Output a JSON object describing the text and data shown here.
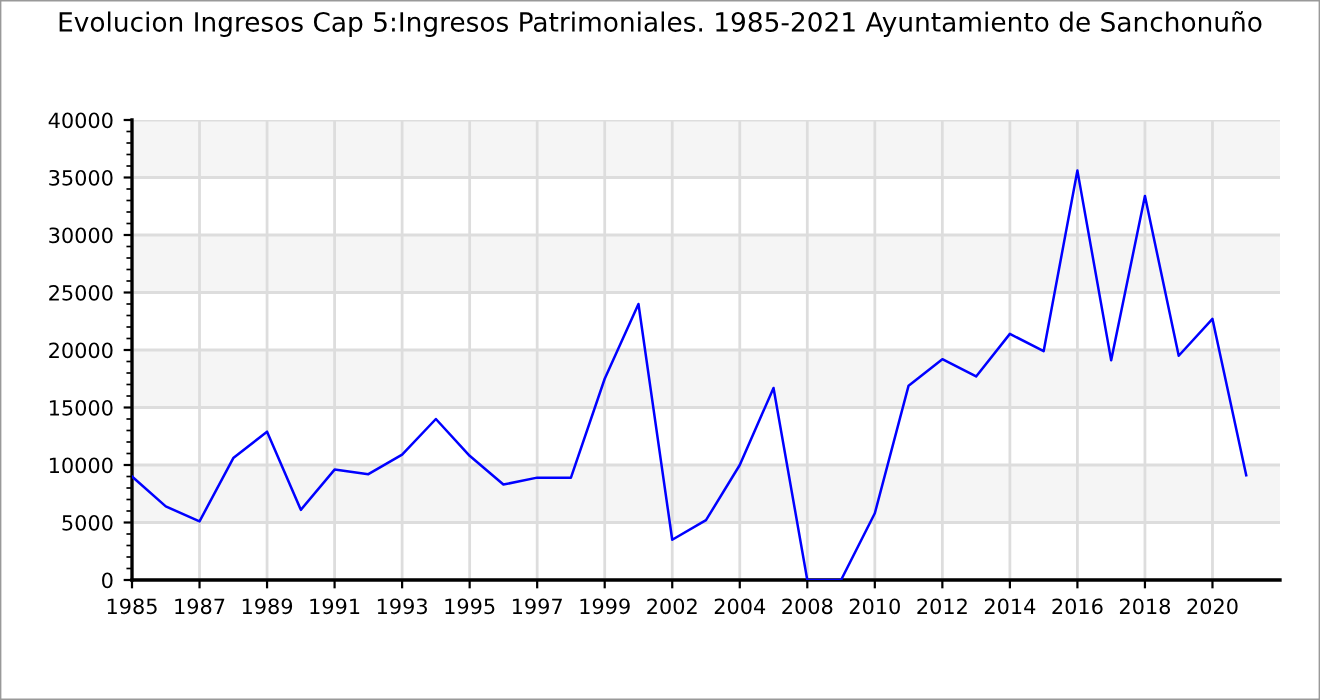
{
  "chart_data": {
    "type": "line",
    "title": "Evolucion Ingresos Cap 5:Ingresos Patrimoniales. 1985-2021 Ayuntamiento de Sanchonuño",
    "categories": [
      "1985",
      null,
      "1987",
      null,
      "1989",
      null,
      "1991",
      null,
      "1993",
      null,
      "1995",
      null,
      "1997",
      null,
      "1999",
      null,
      "2002",
      null,
      "2004",
      null,
      "2008",
      null,
      "2010",
      null,
      "2012",
      null,
      "2014",
      null,
      "2016",
      null,
      "2018",
      null,
      "2020",
      null,
      null
    ],
    "series": [
      {
        "color": "#0000ff",
        "values": [
          9000,
          6400,
          5100,
          10600,
          12900,
          6100,
          9600,
          9200,
          10900,
          14000,
          10800,
          8300,
          8900,
          8900,
          17500,
          24000,
          3500,
          5200,
          10000,
          16700,
          0,
          0,
          5800,
          16900,
          19200,
          17700,
          21400,
          19900,
          35600,
          19100,
          33400,
          19500,
          22700,
          9100,
          null
        ]
      }
    ],
    "ylim": [
      0,
      40000
    ],
    "yticks": [
      0,
      5000,
      10000,
      15000,
      20000,
      25000,
      30000,
      35000,
      40000
    ],
    "grid": true,
    "marker": "none",
    "line_style": "solid",
    "bands": [
      {
        "axis": "y",
        "from": 5000,
        "to": 10000,
        "color": "#f5f5f5"
      },
      {
        "axis": "y",
        "from": 15000,
        "to": 20000,
        "color": "#f5f5f5"
      },
      {
        "axis": "y",
        "from": 25000,
        "to": 30000,
        "color": "#f5f5f5"
      },
      {
        "axis": "y",
        "from": 35000,
        "to": 40000,
        "color": "#f5f5f5"
      }
    ]
  }
}
